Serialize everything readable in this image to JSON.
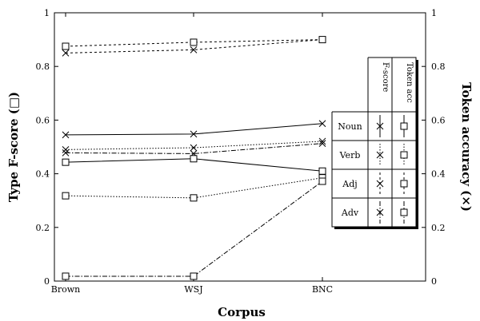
{
  "chart_data": {
    "type": "line",
    "xlabel": "Corpus",
    "ylabel_left": "Type F-score (□)",
    "ylabel_right": "Token accuracy (×)",
    "categories": [
      "Brown",
      "WSJ",
      "BNC"
    ],
    "ylim": [
      0,
      1
    ],
    "yticks": [
      "0",
      "0.2",
      "0.4",
      "0.6",
      "0.8",
      "1"
    ],
    "grid": false,
    "legend": {
      "placement": "right",
      "columns": [
        "F-score",
        "Token acc"
      ],
      "rows": [
        "Noun",
        "Verb",
        "Adj",
        "Adv"
      ]
    },
    "series": [
      {
        "name": "Noun",
        "metric": "Token acc",
        "marker": "x",
        "style": "solid",
        "values": [
          0.545,
          0.548,
          0.587
        ]
      },
      {
        "name": "Verb",
        "metric": "Token acc",
        "marker": "x",
        "style": "dotted",
        "values": [
          0.49,
          0.497,
          0.521
        ]
      },
      {
        "name": "Adj",
        "metric": "Token acc",
        "marker": "x",
        "style": "dashed",
        "values": [
          0.85,
          0.862,
          0.9
        ]
      },
      {
        "name": "Adv",
        "metric": "Token acc",
        "marker": "x",
        "style": "dashdot",
        "values": [
          0.478,
          0.475,
          0.513
        ]
      },
      {
        "name": "Noun",
        "metric": "F-score",
        "marker": "square",
        "style": "solid",
        "values": [
          0.443,
          0.456,
          0.41
        ]
      },
      {
        "name": "Verb",
        "metric": "F-score",
        "marker": "square",
        "style": "dotted",
        "values": [
          0.318,
          0.31,
          0.385
        ]
      },
      {
        "name": "Adj",
        "metric": "F-score",
        "marker": "square",
        "style": "dashed",
        "values": [
          0.875,
          0.89,
          0.9
        ]
      },
      {
        "name": "Adv",
        "metric": "F-score",
        "marker": "square",
        "style": "dashdot",
        "values": [
          0.018,
          0.018,
          0.372
        ]
      }
    ]
  }
}
